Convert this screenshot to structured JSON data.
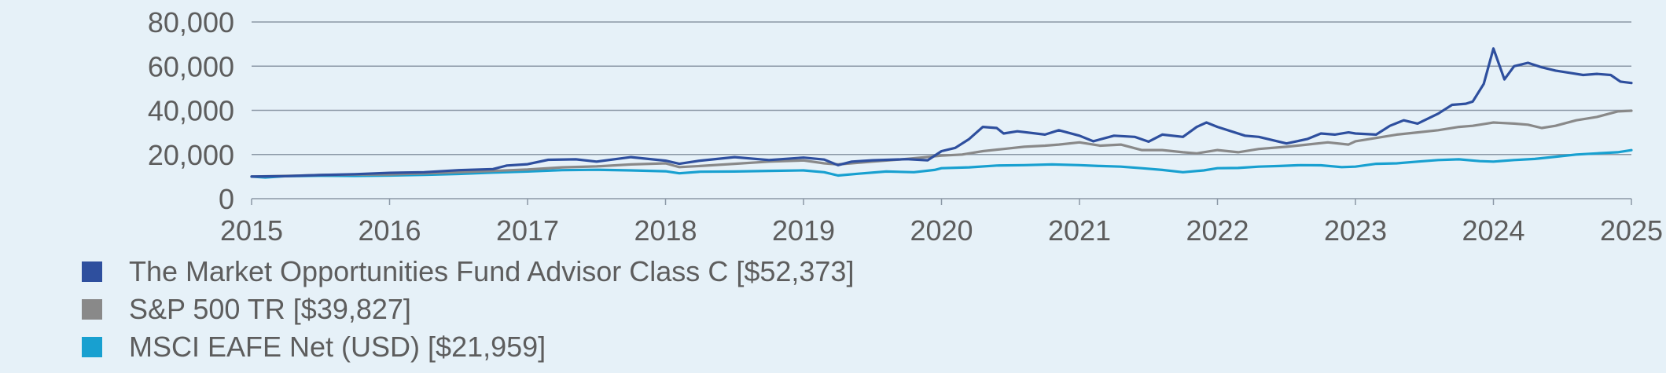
{
  "chart_data": {
    "type": "line",
    "title": "",
    "xlabel": "",
    "ylabel": "",
    "xlim": [
      2015,
      2025
    ],
    "ylim": [
      0,
      80000
    ],
    "y_ticks": [
      0,
      20000,
      40000,
      60000,
      80000
    ],
    "y_tick_labels": [
      "0",
      "20,000",
      "40,000",
      "60,000",
      "80,000"
    ],
    "x_ticks": [
      2015,
      2016,
      2017,
      2018,
      2019,
      2020,
      2021,
      2022,
      2023,
      2024,
      2025
    ],
    "x_tick_labels": [
      "2015",
      "2016",
      "2017",
      "2018",
      "2019",
      "2020",
      "2021",
      "2022",
      "2023",
      "2024",
      "2025"
    ],
    "grid": "horizontal",
    "legend_position": "bottom-left",
    "series": [
      {
        "name": "The Market Opportunities Fund Advisor Class C [$52,373]",
        "color": "#2e4f9e",
        "points": [
          [
            2015.0,
            10000
          ],
          [
            2015.25,
            10200
          ],
          [
            2015.5,
            10700
          ],
          [
            2015.75,
            11100
          ],
          [
            2016.0,
            11700
          ],
          [
            2016.25,
            12000
          ],
          [
            2016.5,
            12900
          ],
          [
            2016.75,
            13400
          ],
          [
            2016.85,
            15000
          ],
          [
            2017.0,
            15600
          ],
          [
            2017.15,
            17600
          ],
          [
            2017.35,
            17800
          ],
          [
            2017.5,
            16800
          ],
          [
            2017.75,
            18800
          ],
          [
            2018.0,
            17200
          ],
          [
            2018.1,
            15800
          ],
          [
            2018.25,
            17200
          ],
          [
            2018.5,
            18800
          ],
          [
            2018.75,
            17500
          ],
          [
            2019.0,
            18600
          ],
          [
            2019.15,
            17700
          ],
          [
            2019.25,
            15200
          ],
          [
            2019.35,
            16800
          ],
          [
            2019.5,
            17400
          ],
          [
            2019.75,
            17900
          ],
          [
            2019.9,
            17400
          ],
          [
            2020.0,
            21500
          ],
          [
            2020.1,
            23000
          ],
          [
            2020.2,
            27000
          ],
          [
            2020.3,
            32500
          ],
          [
            2020.4,
            32000
          ],
          [
            2020.45,
            29500
          ],
          [
            2020.55,
            30500
          ],
          [
            2020.75,
            29000
          ],
          [
            2020.85,
            31000
          ],
          [
            2021.0,
            28500
          ],
          [
            2021.1,
            26000
          ],
          [
            2021.25,
            28500
          ],
          [
            2021.4,
            28000
          ],
          [
            2021.5,
            25800
          ],
          [
            2021.6,
            29000
          ],
          [
            2021.75,
            28000
          ],
          [
            2021.85,
            32500
          ],
          [
            2021.92,
            34500
          ],
          [
            2022.0,
            32500
          ],
          [
            2022.2,
            28500
          ],
          [
            2022.3,
            28000
          ],
          [
            2022.5,
            25000
          ],
          [
            2022.65,
            27000
          ],
          [
            2022.75,
            29500
          ],
          [
            2022.85,
            29000
          ],
          [
            2022.95,
            30000
          ],
          [
            2023.0,
            29500
          ],
          [
            2023.15,
            29000
          ],
          [
            2023.25,
            33000
          ],
          [
            2023.35,
            35500
          ],
          [
            2023.45,
            34000
          ],
          [
            2023.55,
            37000
          ],
          [
            2023.6,
            38500
          ],
          [
            2023.7,
            42500
          ],
          [
            2023.8,
            43000
          ],
          [
            2023.85,
            44000
          ],
          [
            2023.93,
            52000
          ],
          [
            2024.0,
            68000
          ],
          [
            2024.08,
            54000
          ],
          [
            2024.15,
            60000
          ],
          [
            2024.25,
            61500
          ],
          [
            2024.35,
            59500
          ],
          [
            2024.45,
            58000
          ],
          [
            2024.55,
            57000
          ],
          [
            2024.65,
            56000
          ],
          [
            2024.75,
            56500
          ],
          [
            2024.85,
            56000
          ],
          [
            2024.92,
            53000
          ],
          [
            2025.0,
            52373
          ]
        ]
      },
      {
        "name": "S&P 500 TR [$39,827]",
        "color": "#898989",
        "points": [
          [
            2015.0,
            10000
          ],
          [
            2015.25,
            10300
          ],
          [
            2015.5,
            10700
          ],
          [
            2015.75,
            10900
          ],
          [
            2016.0,
            11000
          ],
          [
            2016.25,
            11400
          ],
          [
            2016.5,
            12000
          ],
          [
            2016.75,
            12600
          ],
          [
            2017.0,
            13200
          ],
          [
            2017.25,
            14200
          ],
          [
            2017.5,
            14600
          ],
          [
            2017.75,
            15500
          ],
          [
            2018.0,
            16000
          ],
          [
            2018.1,
            14300
          ],
          [
            2018.25,
            14800
          ],
          [
            2018.5,
            15800
          ],
          [
            2018.75,
            16800
          ],
          [
            2019.0,
            17300
          ],
          [
            2019.15,
            16000
          ],
          [
            2019.25,
            15500
          ],
          [
            2019.5,
            16800
          ],
          [
            2019.75,
            18000
          ],
          [
            2020.0,
            19500
          ],
          [
            2020.15,
            20000
          ],
          [
            2020.3,
            21500
          ],
          [
            2020.45,
            22500
          ],
          [
            2020.6,
            23500
          ],
          [
            2020.75,
            24000
          ],
          [
            2020.85,
            24500
          ],
          [
            2021.0,
            25500
          ],
          [
            2021.15,
            24000
          ],
          [
            2021.3,
            24500
          ],
          [
            2021.45,
            22000
          ],
          [
            2021.6,
            22000
          ],
          [
            2021.75,
            21000
          ],
          [
            2021.85,
            20500
          ],
          [
            2022.0,
            22000
          ],
          [
            2022.15,
            21000
          ],
          [
            2022.3,
            22500
          ],
          [
            2022.5,
            23500
          ],
          [
            2022.65,
            24500
          ],
          [
            2022.8,
            25500
          ],
          [
            2022.95,
            24500
          ],
          [
            2023.0,
            26000
          ],
          [
            2023.15,
            27500
          ],
          [
            2023.3,
            29000
          ],
          [
            2023.45,
            30000
          ],
          [
            2023.6,
            31000
          ],
          [
            2023.75,
            32500
          ],
          [
            2023.85,
            33000
          ],
          [
            2023.95,
            34000
          ],
          [
            2024.0,
            34500
          ],
          [
            2024.15,
            34000
          ],
          [
            2024.25,
            33500
          ],
          [
            2024.35,
            32000
          ],
          [
            2024.45,
            33000
          ],
          [
            2024.6,
            35500
          ],
          [
            2024.75,
            37000
          ],
          [
            2024.9,
            39500
          ],
          [
            2025.0,
            39827
          ]
        ]
      },
      {
        "name": "MSCI EAFE Net (USD) [$21,959]",
        "color": "#18a0d0",
        "points": [
          [
            2015.0,
            10000
          ],
          [
            2015.1,
            9600
          ],
          [
            2015.25,
            10200
          ],
          [
            2015.5,
            10400
          ],
          [
            2015.75,
            10300
          ],
          [
            2016.0,
            10500
          ],
          [
            2016.25,
            10800
          ],
          [
            2016.5,
            11200
          ],
          [
            2016.75,
            11800
          ],
          [
            2017.0,
            12300
          ],
          [
            2017.25,
            12900
          ],
          [
            2017.5,
            13100
          ],
          [
            2017.75,
            12800
          ],
          [
            2018.0,
            12400
          ],
          [
            2018.1,
            11500
          ],
          [
            2018.25,
            12200
          ],
          [
            2018.5,
            12300
          ],
          [
            2018.75,
            12600
          ],
          [
            2019.0,
            12800
          ],
          [
            2019.15,
            12000
          ],
          [
            2019.25,
            10500
          ],
          [
            2019.4,
            11300
          ],
          [
            2019.6,
            12300
          ],
          [
            2019.8,
            12000
          ],
          [
            2019.95,
            13000
          ],
          [
            2020.0,
            13800
          ],
          [
            2020.2,
            14200
          ],
          [
            2020.4,
            15000
          ],
          [
            2020.6,
            15200
          ],
          [
            2020.8,
            15500
          ],
          [
            2021.0,
            15200
          ],
          [
            2021.15,
            14800
          ],
          [
            2021.3,
            14500
          ],
          [
            2021.45,
            13800
          ],
          [
            2021.6,
            13000
          ],
          [
            2021.75,
            12000
          ],
          [
            2021.9,
            12800
          ],
          [
            2022.0,
            13800
          ],
          [
            2022.15,
            13900
          ],
          [
            2022.3,
            14500
          ],
          [
            2022.45,
            14800
          ],
          [
            2022.6,
            15200
          ],
          [
            2022.75,
            15100
          ],
          [
            2022.9,
            14300
          ],
          [
            2023.0,
            14500
          ],
          [
            2023.15,
            15800
          ],
          [
            2023.3,
            16000
          ],
          [
            2023.45,
            16800
          ],
          [
            2023.6,
            17500
          ],
          [
            2023.75,
            17800
          ],
          [
            2023.9,
            17000
          ],
          [
            2024.0,
            16800
          ],
          [
            2024.15,
            17500
          ],
          [
            2024.3,
            18000
          ],
          [
            2024.45,
            19000
          ],
          [
            2024.6,
            20000
          ],
          [
            2024.75,
            20500
          ],
          [
            2024.9,
            21000
          ],
          [
            2025.0,
            21959
          ]
        ]
      }
    ]
  }
}
